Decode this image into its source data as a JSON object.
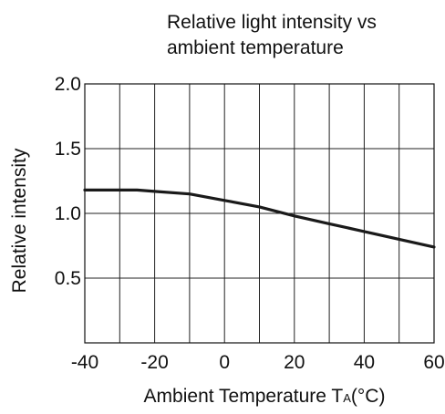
{
  "chart_data": {
    "type": "line",
    "title_lines": [
      "Relative light intensity vs",
      "ambient temperature"
    ],
    "xlabel_main": "Ambient Temperature T",
    "xlabel_sub": "A",
    "xlabel_unit": "(°C)",
    "ylabel": "Relative intensity",
    "xlim": [
      -40,
      60
    ],
    "ylim": [
      0,
      2.0
    ],
    "grid": true,
    "xticks": [
      -40,
      -30,
      -20,
      -10,
      0,
      10,
      20,
      30,
      40,
      50,
      60
    ],
    "xtick_labels": [
      {
        "value": -40,
        "label": "-40"
      },
      {
        "value": -20,
        "label": "-20"
      },
      {
        "value": 0,
        "label": "0"
      },
      {
        "value": 20,
        "label": "20"
      },
      {
        "value": 40,
        "label": "40"
      },
      {
        "value": 60,
        "label": "60"
      }
    ],
    "yticks": [
      0,
      0.5,
      1.0,
      1.5,
      2.0
    ],
    "ytick_labels": [
      {
        "value": 0.5,
        "label": "0.5"
      },
      {
        "value": 1.0,
        "label": "1.0"
      },
      {
        "value": 1.5,
        "label": "1.5"
      },
      {
        "value": 2.0,
        "label": "2.0"
      }
    ],
    "series": [
      {
        "color": "#1a1a1a",
        "x": [
          -40,
          -30,
          -25,
          -20,
          -10,
          0,
          10,
          20,
          30,
          40,
          50,
          60
        ],
        "y": [
          1.18,
          1.18,
          1.18,
          1.17,
          1.15,
          1.1,
          1.05,
          0.98,
          0.92,
          0.86,
          0.8,
          0.74
        ]
      }
    ]
  }
}
